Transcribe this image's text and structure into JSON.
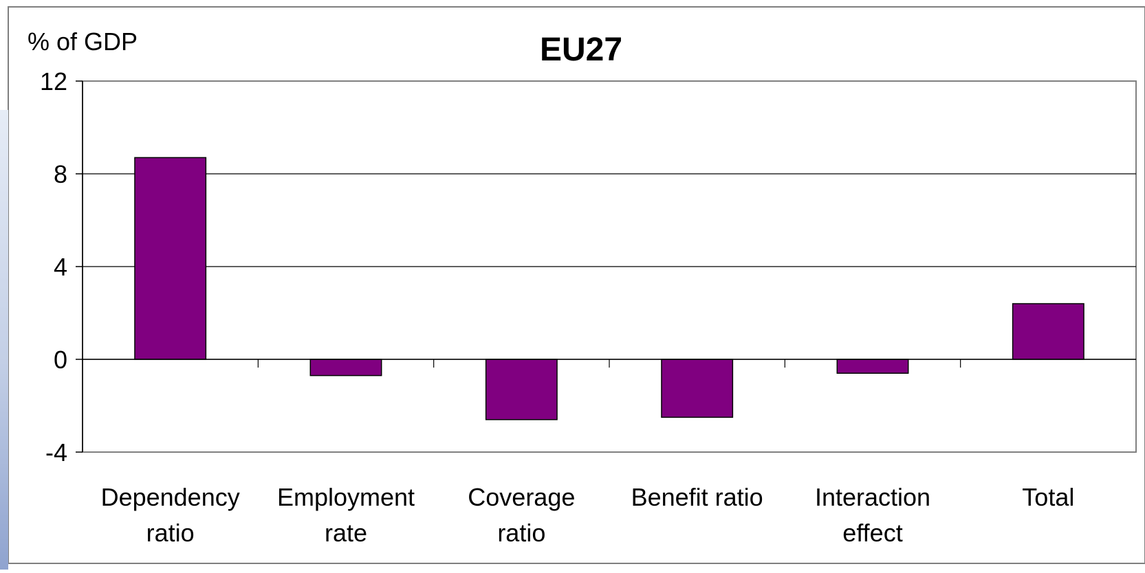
{
  "chart_data": {
    "type": "bar",
    "title": "EU27",
    "unit_label": "% of GDP",
    "xlabel": "",
    "ylabel": "% of GDP",
    "categories": [
      [
        "Dependency",
        "ratio"
      ],
      [
        "Employment",
        "rate"
      ],
      [
        "Coverage",
        "ratio"
      ],
      [
        "Benefit ratio"
      ],
      [
        "Interaction",
        "effect"
      ],
      [
        "Total"
      ]
    ],
    "values": [
      8.7,
      -0.7,
      -2.6,
      -2.5,
      -0.6,
      2.4
    ],
    "ylim": [
      -4,
      12
    ],
    "yticks": [
      -4,
      0,
      4,
      8,
      12
    ],
    "grid": true,
    "legend": "none",
    "bar_color": "#800080"
  }
}
